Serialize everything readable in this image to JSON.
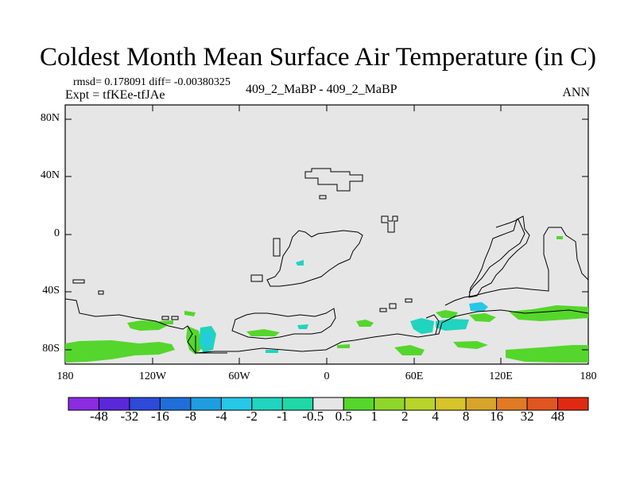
{
  "title": "Coldest Month Mean Surface Air Temperature (in C)",
  "stats": "rmsd= 0.178091 diff= -0.00380325",
  "expt": "Expt = tfKEe-tfJAe",
  "cases": "409_2_MaBP - 409_2_MaBP",
  "season": "ANN",
  "y_ticks": [
    "80N",
    "40N",
    "0",
    "40S",
    "80S"
  ],
  "x_ticks": [
    "180",
    "120W",
    "60W",
    "0",
    "60E",
    "120E",
    "180"
  ],
  "colorbar": {
    "labels": [
      "-48",
      "-32",
      "-16",
      "-8",
      "-4",
      "-2",
      "-1",
      "-0.5",
      "0.5",
      "1",
      "2",
      "4",
      "8",
      "16",
      "32",
      "48"
    ],
    "colors": [
      "#8b2be2",
      "#5a28d8",
      "#2d4ad8",
      "#1f6fd8",
      "#1e9ee0",
      "#25c8e6",
      "#20d4c0",
      "#1fd8a8",
      "#e6e6e6",
      "#55d62c",
      "#8fd62a",
      "#b8d42a",
      "#d6c42a",
      "#d6a52a",
      "#e07a25",
      "#e05520",
      "#e02a10"
    ]
  },
  "map": {
    "background": "#e6e6e6",
    "projection": "cylindrical equidistant, 180W-180E, 90S-90N"
  }
}
